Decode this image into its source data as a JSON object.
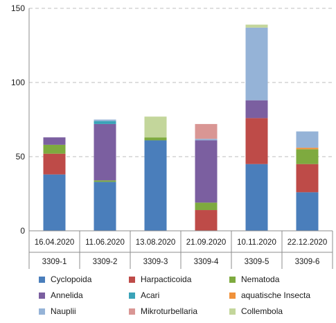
{
  "chart_data": {
    "type": "bar",
    "stacked": true,
    "categories": [
      "16.04.2020",
      "11.06.2020",
      "13.08.2020",
      "21.09.2020",
      "10.11.2020",
      "22.12.2020"
    ],
    "subcategories": [
      "3309-1",
      "3309-2",
      "3309-3",
      "3309-4",
      "3309-5",
      "3309-6"
    ],
    "ylim": [
      0,
      150
    ],
    "yticks": [
      0,
      50,
      100,
      150
    ],
    "grid": true,
    "legend_position": "bottom",
    "series": [
      {
        "name": "Cyclopoida",
        "color": "#4a7ebb",
        "values": [
          38,
          33,
          61,
          0,
          45,
          26
        ]
      },
      {
        "name": "Harpacticoida",
        "color": "#be4b48",
        "values": [
          14,
          0,
          0,
          14,
          31,
          19
        ]
      },
      {
        "name": "Nematoda",
        "color": "#7eaa3f",
        "values": [
          6,
          1,
          2,
          5,
          0,
          10
        ]
      },
      {
        "name": "Annelida",
        "color": "#7b5fa0",
        "values": [
          5,
          38,
          0,
          42,
          12,
          0
        ]
      },
      {
        "name": "Acari",
        "color": "#3aa3b8",
        "values": [
          0,
          2,
          0,
          0,
          0,
          0
        ]
      },
      {
        "name": "aquatische Insecta",
        "color": "#f0913a",
        "values": [
          0,
          0,
          0,
          0,
          0,
          1
        ]
      },
      {
        "name": "Nauplii",
        "color": "#95b3d7",
        "values": [
          0,
          1,
          0,
          1,
          49,
          11
        ]
      },
      {
        "name": "Mikroturbellaria",
        "color": "#d99694",
        "values": [
          0,
          0,
          0,
          10,
          0,
          0
        ]
      },
      {
        "name": "Collembola",
        "color": "#c3d69b",
        "values": [
          0,
          0,
          14,
          0,
          2,
          0
        ]
      }
    ]
  }
}
